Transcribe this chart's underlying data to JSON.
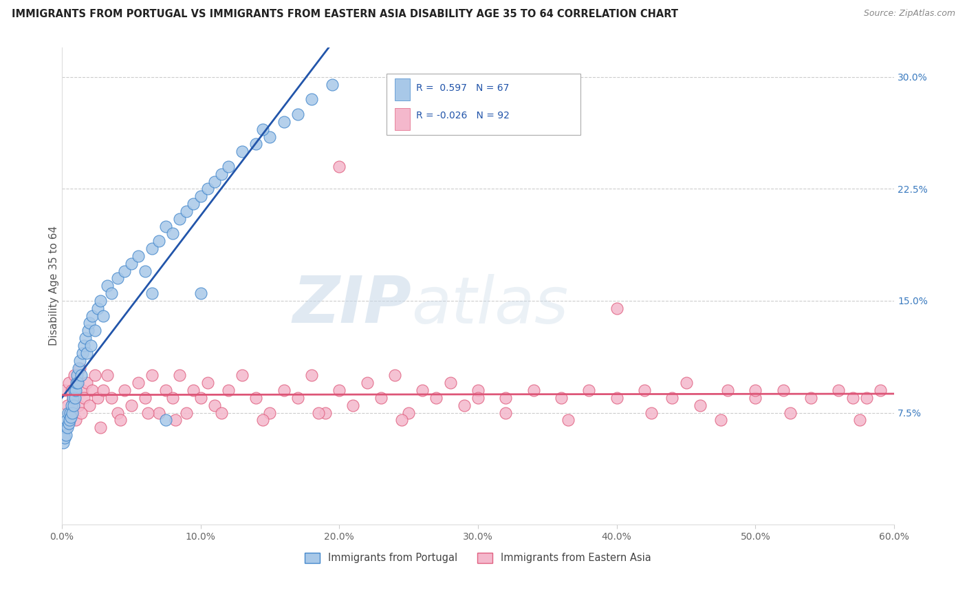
{
  "title": "IMMIGRANTS FROM PORTUGAL VS IMMIGRANTS FROM EASTERN ASIA DISABILITY AGE 35 TO 64 CORRELATION CHART",
  "source": "Source: ZipAtlas.com",
  "ylabel": "Disability Age 35 to 64",
  "x_ticks": [
    0.0,
    10.0,
    20.0,
    30.0,
    40.0,
    50.0,
    60.0
  ],
  "y_ticks_right": [
    7.5,
    15.0,
    22.5,
    30.0
  ],
  "ylim": [
    0,
    32
  ],
  "xlim": [
    0,
    60
  ],
  "legend_blue_R": "0.597",
  "legend_blue_N": "67",
  "legend_pink_R": "-0.026",
  "legend_pink_N": "92",
  "blue_color": "#a8c8e8",
  "pink_color": "#f4b8cc",
  "blue_edge_color": "#4488cc",
  "pink_edge_color": "#e06080",
  "blue_line_color": "#2255aa",
  "pink_line_color": "#dd5577",
  "watermark": "ZIPatlas",
  "portugal_x": [
    0.1,
    0.15,
    0.2,
    0.25,
    0.3,
    0.35,
    0.4,
    0.45,
    0.5,
    0.55,
    0.6,
    0.65,
    0.7,
    0.75,
    0.8,
    0.85,
    0.9,
    0.95,
    1.0,
    1.05,
    1.1,
    1.15,
    1.2,
    1.3,
    1.4,
    1.5,
    1.6,
    1.7,
    1.8,
    1.9,
    2.0,
    2.1,
    2.2,
    2.4,
    2.6,
    2.8,
    3.0,
    3.3,
    3.6,
    4.0,
    4.5,
    5.0,
    5.5,
    6.0,
    6.5,
    7.0,
    7.5,
    8.0,
    8.5,
    9.0,
    9.5,
    10.0,
    10.5,
    11.0,
    11.5,
    12.0,
    13.0,
    14.0,
    15.0,
    16.0,
    17.0,
    18.0,
    19.5,
    6.5,
    14.5,
    10.0,
    7.5
  ],
  "portugal_y": [
    5.5,
    6.0,
    5.8,
    6.5,
    6.0,
    7.0,
    6.5,
    7.5,
    6.8,
    7.0,
    7.5,
    7.2,
    8.0,
    7.5,
    8.5,
    8.0,
    9.0,
    8.5,
    9.0,
    9.5,
    10.0,
    9.5,
    10.5,
    11.0,
    10.0,
    11.5,
    12.0,
    12.5,
    11.5,
    13.0,
    13.5,
    12.0,
    14.0,
    13.0,
    14.5,
    15.0,
    14.0,
    16.0,
    15.5,
    16.5,
    17.0,
    17.5,
    18.0,
    17.0,
    18.5,
    19.0,
    20.0,
    19.5,
    20.5,
    21.0,
    21.5,
    22.0,
    22.5,
    23.0,
    23.5,
    24.0,
    25.0,
    25.5,
    26.0,
    27.0,
    27.5,
    28.5,
    29.5,
    15.5,
    26.5,
    15.5,
    7.0
  ],
  "eastern_asia_x": [
    0.2,
    0.4,
    0.5,
    0.6,
    0.7,
    0.8,
    0.9,
    1.0,
    1.1,
    1.2,
    1.3,
    1.5,
    1.6,
    1.8,
    2.0,
    2.2,
    2.4,
    2.6,
    3.0,
    3.3,
    3.6,
    4.0,
    4.5,
    5.0,
    5.5,
    6.0,
    6.5,
    7.0,
    7.5,
    8.0,
    8.5,
    9.0,
    9.5,
    10.0,
    10.5,
    11.0,
    12.0,
    13.0,
    14.0,
    15.0,
    16.0,
    17.0,
    18.0,
    19.0,
    20.0,
    21.0,
    22.0,
    23.0,
    24.0,
    25.0,
    26.0,
    27.0,
    28.0,
    29.0,
    30.0,
    32.0,
    34.0,
    36.0,
    38.0,
    40.0,
    42.0,
    44.0,
    45.0,
    46.0,
    48.0,
    50.0,
    52.0,
    54.0,
    56.0,
    57.0,
    58.0,
    59.0,
    0.3,
    1.4,
    2.8,
    4.2,
    6.2,
    8.2,
    11.5,
    14.5,
    18.5,
    24.5,
    32.0,
    36.5,
    42.5,
    47.5,
    52.5,
    57.5,
    30.0,
    50.0,
    20.0,
    40.0
  ],
  "eastern_asia_y": [
    9.0,
    8.0,
    9.5,
    7.5,
    9.0,
    8.5,
    10.0,
    7.0,
    9.5,
    8.0,
    10.5,
    9.0,
    8.5,
    9.5,
    8.0,
    9.0,
    10.0,
    8.5,
    9.0,
    10.0,
    8.5,
    7.5,
    9.0,
    8.0,
    9.5,
    8.5,
    10.0,
    7.5,
    9.0,
    8.5,
    10.0,
    7.5,
    9.0,
    8.5,
    9.5,
    8.0,
    9.0,
    10.0,
    8.5,
    7.5,
    9.0,
    8.5,
    10.0,
    7.5,
    9.0,
    8.0,
    9.5,
    8.5,
    10.0,
    7.5,
    9.0,
    8.5,
    9.5,
    8.0,
    9.0,
    8.5,
    9.0,
    8.5,
    9.0,
    8.5,
    9.0,
    8.5,
    9.5,
    8.0,
    9.0,
    8.5,
    9.0,
    8.5,
    9.0,
    8.5,
    8.5,
    9.0,
    6.5,
    7.5,
    6.5,
    7.0,
    7.5,
    7.0,
    7.5,
    7.0,
    7.5,
    7.0,
    7.5,
    7.0,
    7.5,
    7.0,
    7.5,
    7.0,
    8.5,
    9.0,
    24.0,
    14.5
  ]
}
